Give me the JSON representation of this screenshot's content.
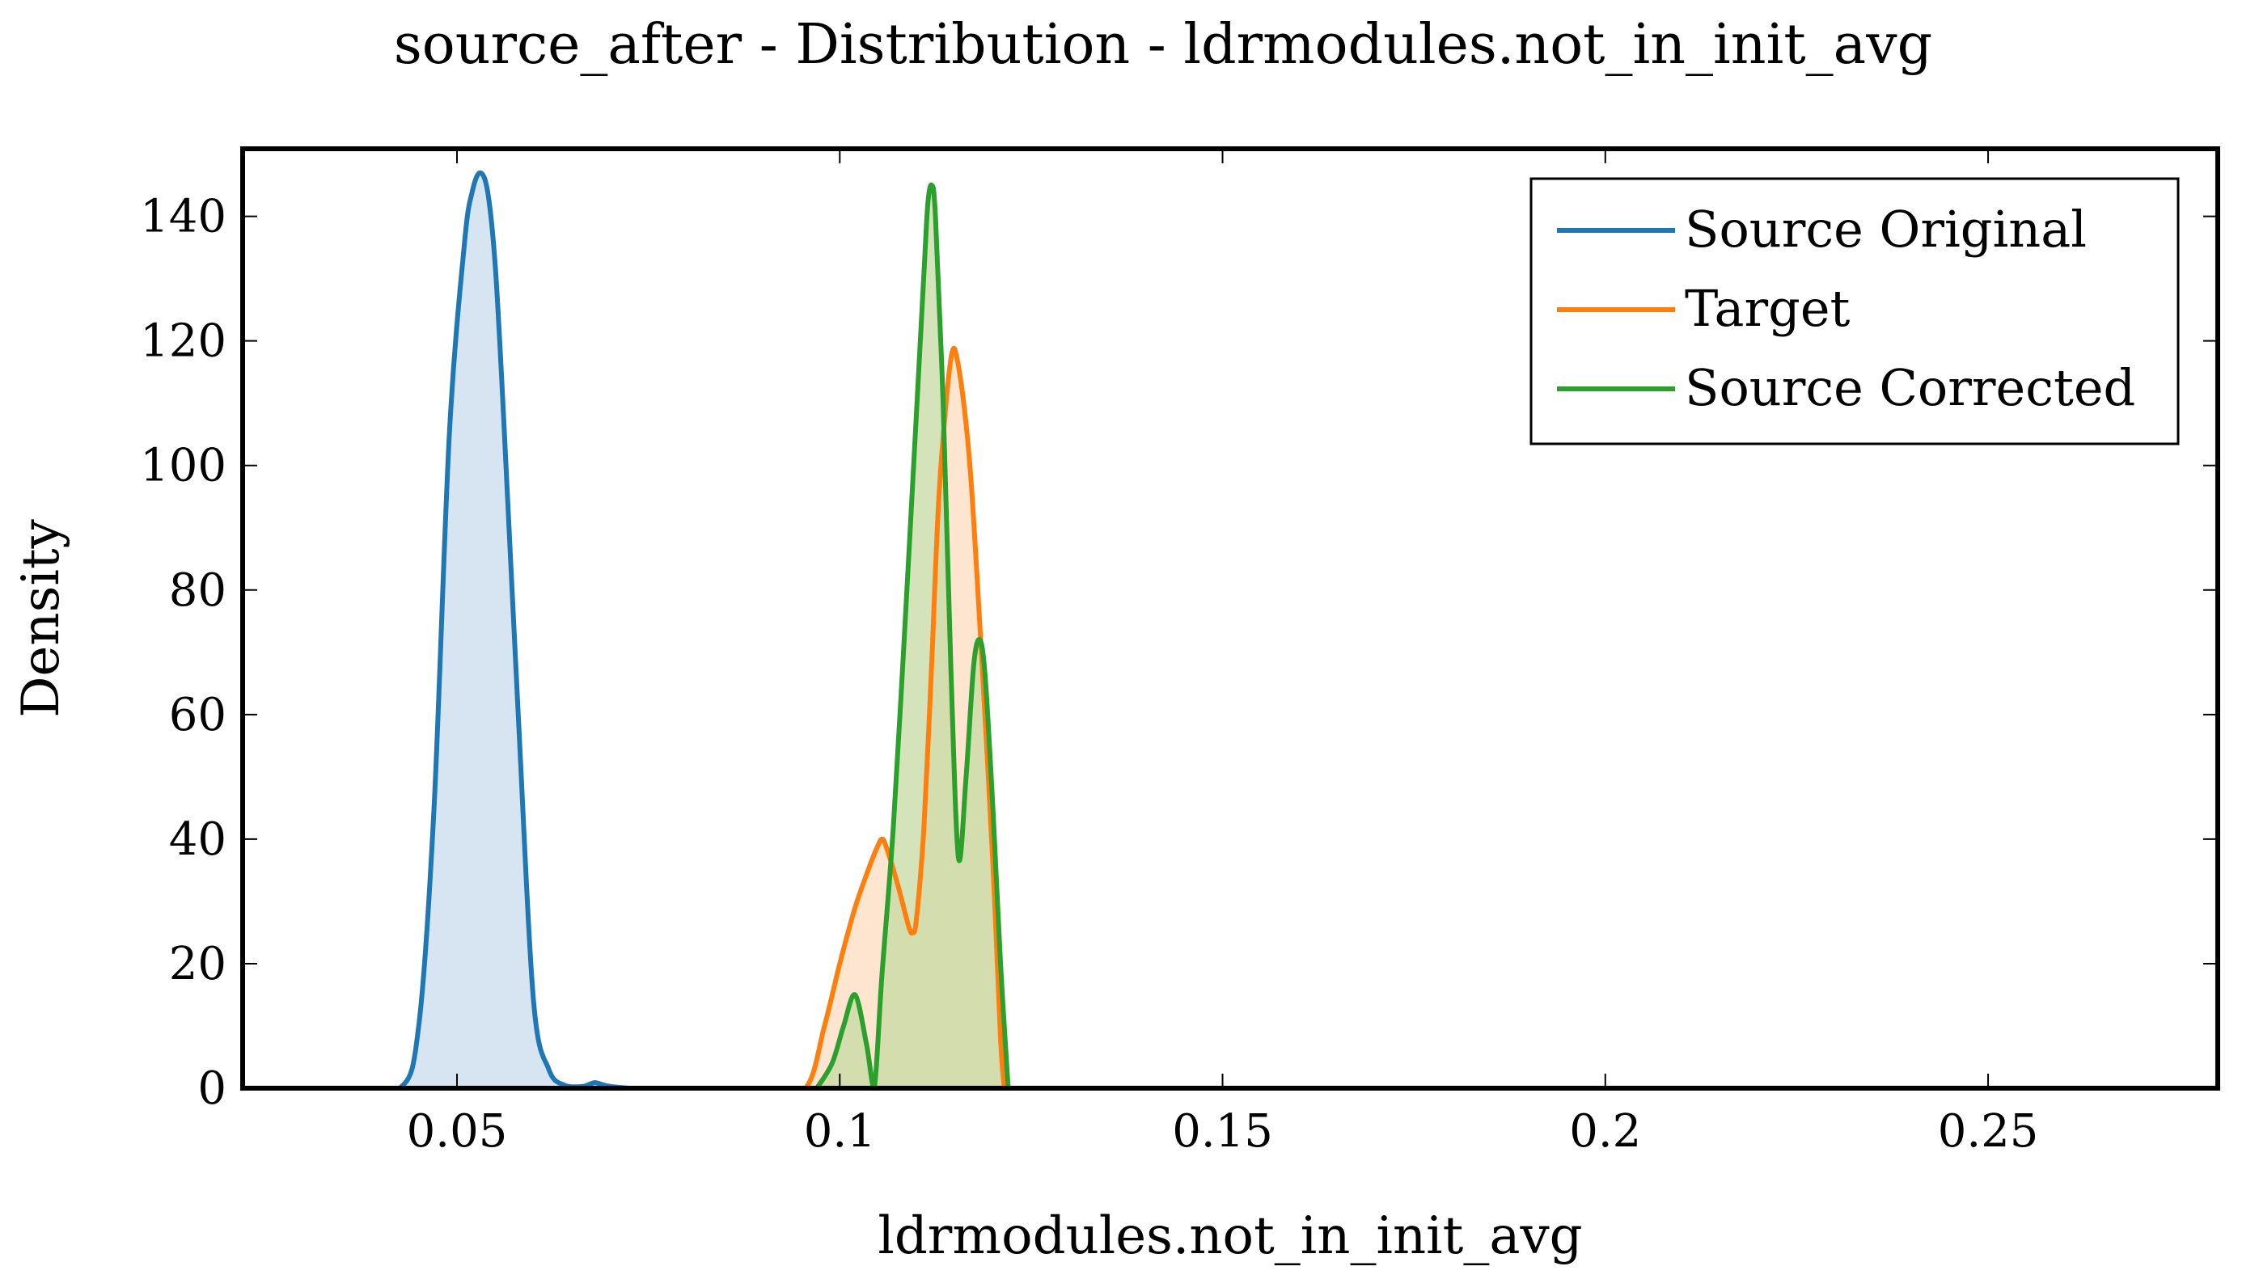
{
  "chart_data": {
    "type": "area",
    "title": "source_after - Distribution - ldrmodules.not_in_init_avg",
    "xlabel": "ldrmodules.not_in_init_avg",
    "ylabel": "Density",
    "xlim": [
      0.022,
      0.28
    ],
    "ylim": [
      0,
      148
    ],
    "x_ticks": [
      0.05,
      0.1,
      0.15,
      0.2,
      0.25
    ],
    "x_tick_labels": [
      "0.05",
      "0.1",
      "0.15",
      "0.2",
      "0.25"
    ],
    "y_ticks": [
      0,
      20,
      40,
      60,
      80,
      100,
      120,
      140
    ],
    "y_tick_labels": [
      "0",
      "20",
      "40",
      "60",
      "80",
      "100",
      "120",
      "140"
    ],
    "legend_position": "top-right",
    "grid": false,
    "series": [
      {
        "name": "Source Original",
        "color": "#1f77b4",
        "fill": "#cfe0ef",
        "x": [
          0.035,
          0.0425,
          0.045,
          0.047,
          0.049,
          0.051,
          0.052,
          0.053,
          0.054,
          0.055,
          0.056,
          0.058,
          0.06,
          0.062,
          0.064,
          0.0665,
          0.068,
          0.0695,
          0.0725,
          0.075
        ],
        "y": [
          0,
          0,
          10,
          45,
          105,
          136,
          144,
          147,
          144,
          132,
          110,
          60,
          14,
          3,
          0.5,
          0.3,
          0.9,
          0.4,
          0,
          0
        ]
      },
      {
        "name": "Target",
        "color": "#ff7f0e",
        "fill": "#fde0c8",
        "x": [
          0.09,
          0.0955,
          0.098,
          0.1,
          0.102,
          0.104,
          0.105,
          0.1055,
          0.106,
          0.1075,
          0.109,
          0.1095,
          0.11,
          0.111,
          0.112,
          0.113,
          0.1145,
          0.1155,
          0.117,
          0.1185,
          0.12,
          0.121,
          0.1215
        ],
        "y": [
          0,
          0,
          10,
          20,
          29,
          36,
          39,
          40,
          39,
          33,
          26,
          25,
          27,
          42,
          68,
          96,
          117,
          116,
          100,
          70,
          36,
          8,
          0
        ]
      },
      {
        "name": "Source Corrected",
        "color": "#2ca02c",
        "fill": "#c5d9a3",
        "x": [
          0.097,
          0.099,
          0.1005,
          0.102,
          0.1035,
          0.1045,
          0.1055,
          0.107,
          0.1085,
          0.11,
          0.111,
          0.1115,
          0.112,
          0.1125,
          0.1135,
          0.1145,
          0.1155,
          0.1165,
          0.1175,
          0.1183,
          0.119,
          0.12,
          0.121,
          0.122
        ],
        "y": [
          0,
          4,
          10,
          15,
          7,
          0,
          18,
          42,
          74,
          108,
          131,
          142,
          145,
          140,
          110,
          68,
          37,
          50,
          68,
          72,
          66,
          45,
          20,
          0
        ]
      }
    ]
  }
}
